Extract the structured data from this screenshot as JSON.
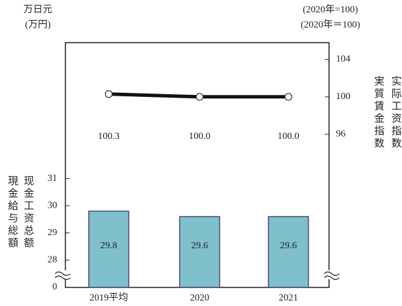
{
  "chart_data": {
    "type": "combo",
    "y_unit": [
      "万日元",
      "(万円)"
    ],
    "y2_unit": [
      "(2020年=100)",
      "(2020年＝100)"
    ],
    "y_label": [
      "現金給与総額",
      "现金工资总额"
    ],
    "y2_label": [
      "実質賃金指数",
      "实际工资指数"
    ],
    "categories": [
      "2019平均",
      "2020",
      "2021"
    ],
    "series": [
      {
        "type": "bar",
        "color": "#7fc0cc",
        "values": [
          29.8,
          29.6,
          29.6
        ]
      },
      {
        "type": "line",
        "axis": "y2",
        "color": "#111111",
        "values": [
          100.3,
          100.0,
          100.0
        ],
        "value_labels": [
          "100.3",
          "100.0",
          "100.0"
        ]
      }
    ],
    "ylim": [
      0,
      36
    ],
    "yticks": [
      0,
      28,
      29,
      30,
      31
    ],
    "axis_break": [
      0,
      27.5
    ],
    "y2lim": [
      79.6,
      105.8
    ],
    "y2ticks": [
      96,
      100,
      104
    ]
  }
}
